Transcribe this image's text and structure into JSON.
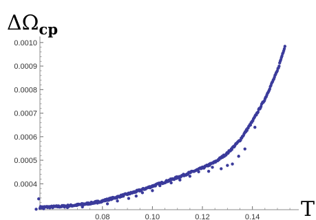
{
  "chart_data": {
    "type": "scatter",
    "ylabel": "ΔΩ",
    "ylabel_sub": "cp",
    "xlabel": "T",
    "xlim": [
      0.055,
      0.158
    ],
    "ylim": [
      0.00029,
      0.00102
    ],
    "x_ticks": [
      0.08,
      0.1,
      0.12,
      0.14
    ],
    "x_tick_labels": [
      "0.08",
      "0.10",
      "0.12",
      "0.14"
    ],
    "y_ticks": [
      0.0004,
      0.0005,
      0.0006,
      0.0007,
      0.0008,
      0.0009,
      0.001
    ],
    "y_tick_labels": [
      "0.0004",
      "0.0005",
      "0.0006",
      "0.0007",
      "0.0008",
      "0.0009",
      "0.0010"
    ],
    "grid": false,
    "marker_color": "#3b3b9b",
    "curve": {
      "x": [
        0.055,
        0.06,
        0.065,
        0.07,
        0.075,
        0.08,
        0.085,
        0.09,
        0.095,
        0.1,
        0.105,
        0.11,
        0.115,
        0.12,
        0.125,
        0.13,
        0.135,
        0.14,
        0.145,
        0.15,
        0.153
      ],
      "y": [
        0.0003,
        0.000302,
        0.000305,
        0.00031,
        0.000317,
        0.000327,
        0.000341,
        0.000356,
        0.000372,
        0.00039,
        0.000408,
        0.000427,
        0.000447,
        0.000467,
        0.000492,
        0.00053,
        0.000585,
        0.000665,
        0.00076,
        0.00088,
        0.000985
      ]
    },
    "outliers": [
      {
        "x": 0.0535,
        "y": 0.000292
      },
      {
        "x": 0.0545,
        "y": 0.000336
      },
      {
        "x": 0.0565,
        "y": 0.000294
      },
      {
        "x": 0.066,
        "y": 0.000299
      },
      {
        "x": 0.072,
        "y": 0.000302
      },
      {
        "x": 0.078,
        "y": 0.000318
      },
      {
        "x": 0.082,
        "y": 0.000315
      },
      {
        "x": 0.086,
        "y": 0.000327
      },
      {
        "x": 0.0905,
        "y": 0.000338
      },
      {
        "x": 0.0935,
        "y": 0.000348
      },
      {
        "x": 0.096,
        "y": 0.000362
      },
      {
        "x": 0.1,
        "y": 0.000371
      },
      {
        "x": 0.103,
        "y": 0.000392
      },
      {
        "x": 0.1075,
        "y": 0.000404
      },
      {
        "x": 0.111,
        "y": 0.000416
      },
      {
        "x": 0.115,
        "y": 0.000432
      },
      {
        "x": 0.1185,
        "y": 0.000451
      },
      {
        "x": 0.1225,
        "y": 0.000453
      },
      {
        "x": 0.124,
        "y": 0.00047
      },
      {
        "x": 0.1275,
        "y": 0.000464
      },
      {
        "x": 0.13,
        "y": 0.000478
      },
      {
        "x": 0.132,
        "y": 0.000484
      },
      {
        "x": 0.1345,
        "y": 0.000517
      },
      {
        "x": 0.137,
        "y": 0.000548
      },
      {
        "x": 0.141,
        "y": 0.00064
      }
    ]
  }
}
